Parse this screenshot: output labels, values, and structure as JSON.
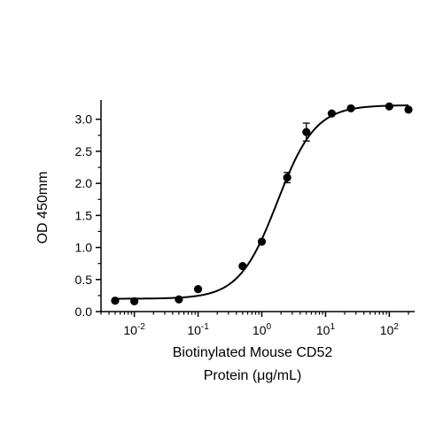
{
  "chart_data": {
    "type": "scatter",
    "title": "",
    "xlabel_lines": [
      "Biotinylated Mouse CD52",
      "Protein (μg/mL)"
    ],
    "ylabel": "OD 450mm",
    "xscale": "log",
    "xlim": [
      0.003,
      250
    ],
    "ylim": [
      0,
      3.3
    ],
    "x_ticks": [
      {
        "value": 0.01,
        "base": "10",
        "exp": "-2"
      },
      {
        "value": 0.1,
        "base": "10",
        "exp": "-1"
      },
      {
        "value": 1,
        "base": "10",
        "exp": "0"
      },
      {
        "value": 10,
        "base": "10",
        "exp": "1"
      },
      {
        "value": 100,
        "base": "10",
        "exp": "2"
      }
    ],
    "y_ticks": [
      0,
      0.5,
      1.0,
      1.5,
      2.0,
      2.5,
      3.0
    ],
    "y_tick_labels": [
      "0.0",
      "0.5",
      "1.0",
      "1.5",
      "2.0",
      "2.5",
      "3.0"
    ],
    "grid": false,
    "legend": "none",
    "marker_color": "#000000",
    "line_color": "#000000",
    "series": [
      {
        "points": [
          {
            "x": 0.005,
            "y": 0.17
          },
          {
            "x": 0.01,
            "y": 0.16
          },
          {
            "x": 0.05,
            "y": 0.19
          },
          {
            "x": 0.1,
            "y": 0.35
          },
          {
            "x": 0.5,
            "y": 0.71
          },
          {
            "x": 1,
            "y": 1.09
          },
          {
            "x": 2.5,
            "y": 2.09,
            "err": 0.08
          },
          {
            "x": 5,
            "y": 2.8,
            "err": 0.14
          },
          {
            "x": 12.5,
            "y": 3.09
          },
          {
            "x": 25,
            "y": 3.17
          },
          {
            "x": 100,
            "y": 3.2
          },
          {
            "x": 200,
            "y": 3.15
          }
        ]
      }
    ],
    "fit_curve": {
      "model": "4PL",
      "bottom": 0.2,
      "top": 3.22,
      "ec50": 1.75,
      "hill": 1.45,
      "x_range": [
        0.005,
        200
      ]
    }
  }
}
